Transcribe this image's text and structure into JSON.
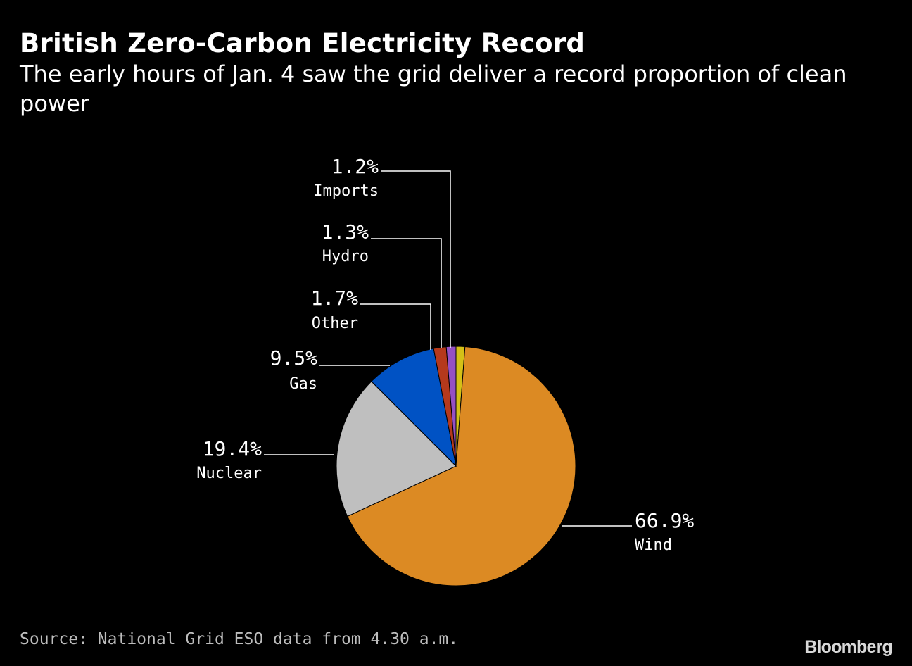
{
  "header": {
    "title": "British Zero-Carbon Electricity Record",
    "subtitle": "The early hours of Jan. 4 saw the grid deliver a record proportion of clean power"
  },
  "footer": {
    "source": "Source: National Grid ESO data from 4.30 a.m.",
    "brand": "Bloomberg"
  },
  "chart_data": {
    "type": "pie",
    "title": "British Zero-Carbon Electricity Record",
    "subtitle": "The early hours of Jan. 4 saw the grid deliver a record proportion of clean power",
    "unit": "%",
    "slices": [
      {
        "name": "Imports",
        "value": 1.2,
        "label": "1.2%",
        "color": "#d4c017"
      },
      {
        "name": "Wind",
        "value": 66.9,
        "label": "66.9%",
        "color": "#dc8a23"
      },
      {
        "name": "Nuclear",
        "value": 19.4,
        "label": "19.4%",
        "color": "#bfbfbf"
      },
      {
        "name": "Gas",
        "value": 9.5,
        "label": "9.5%",
        "color": "#0052c4"
      },
      {
        "name": "Other",
        "value": 1.7,
        "label": "1.7%",
        "color": "#b5391c"
      },
      {
        "name": "Hydro",
        "value": 1.3,
        "label": "1.3%",
        "color": "#9450c4"
      }
    ]
  }
}
